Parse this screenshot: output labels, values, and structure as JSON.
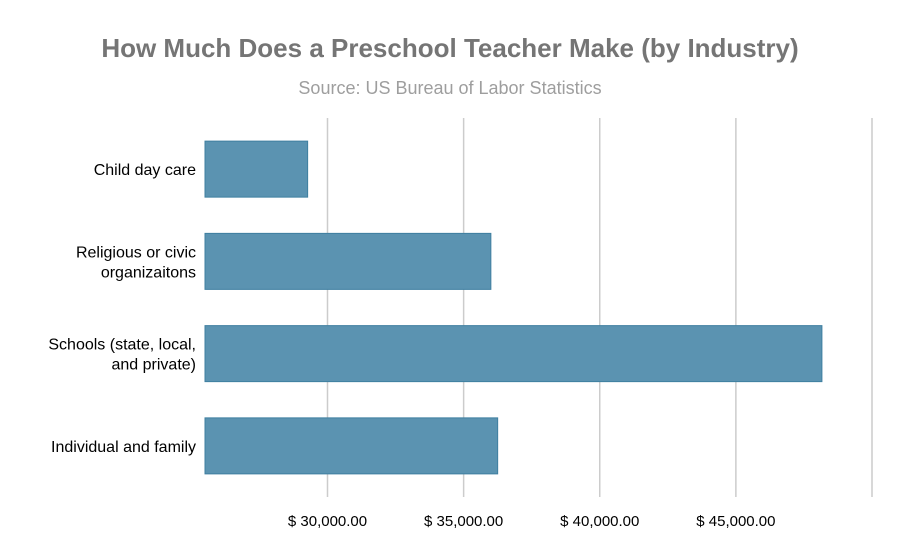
{
  "chart_data": {
    "type": "bar",
    "orientation": "horizontal",
    "title": "How Much Does a Preschool Teacher Make (by Industry)",
    "subtitle": "Source: US Bureau of Labor Statistics",
    "categories": [
      [
        "Child day care"
      ],
      [
        "Religious or civic",
        "organizaitons"
      ],
      [
        "Schools (state, local,",
        "and private)"
      ],
      [
        "Individual and family"
      ]
    ],
    "values": [
      29270,
      36000,
      48160,
      36250
    ],
    "xlim": [
      25500,
      50000
    ],
    "xticks": [
      30000,
      35000,
      40000,
      45000,
      50000
    ],
    "xtick_labels": [
      "$ 30,000.00",
      "$ 35,000.00",
      "$ 40,000.00",
      "$ 45,000.00",
      ""
    ],
    "grid": true,
    "colors": {
      "bar": "#5b93b1",
      "bar_stroke": "#3f7fa0",
      "grid": "#cccccc",
      "title": "#757575",
      "subtitle": "#9e9e9e"
    }
  }
}
